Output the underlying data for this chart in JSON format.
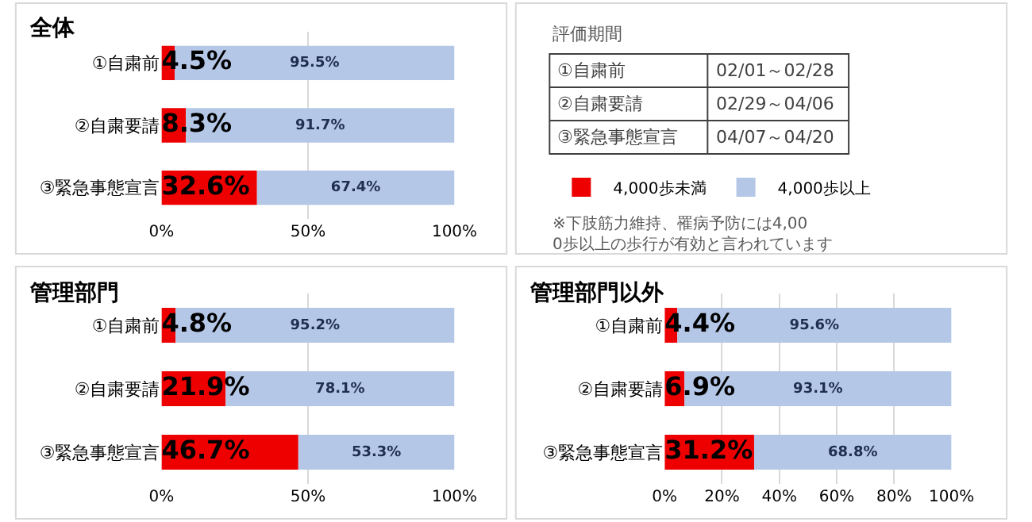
{
  "chart_data": [
    {
      "type": "bar",
      "title": "全体",
      "orientation": "horizontal",
      "stacked": true,
      "categories": [
        "①自粛前",
        "②自粛要請",
        "③緊急事態宣言"
      ],
      "series": [
        {
          "name": "4,000歩未満",
          "color": "#ee0000",
          "values": [
            4.5,
            8.3,
            32.6
          ],
          "value_labels": [
            "4.5%",
            "8.3%",
            "32.6%"
          ]
        },
        {
          "name": "4,000歩以上",
          "color": "#b4c7e7",
          "values": [
            95.5,
            91.7,
            67.4
          ],
          "value_labels": [
            "95.5%",
            "91.7%",
            "67.4%"
          ]
        }
      ],
      "xlim": [
        0,
        100
      ],
      "xticks": [
        {
          "value": 0,
          "label": "0%"
        },
        {
          "value": 50,
          "label": "50%"
        },
        {
          "value": 100,
          "label": "100%"
        }
      ],
      "grid": "x",
      "legend": "right"
    },
    {
      "type": "other",
      "title": "評価期間",
      "annotations": [
        "①自粛前",
        "02/01～02/28",
        "②自粛要請",
        "02/29～04/06",
        "③緊急事態宣言",
        "04/07～04/20",
        "※下肢筋力維持、罹病予防には4,000歩以上の歩行が有効と言われています"
      ]
    },
    {
      "type": "bar",
      "title": "管理部門",
      "orientation": "horizontal",
      "stacked": true,
      "categories": [
        "①自粛前",
        "②自粛要請",
        "③緊急事態宣言"
      ],
      "series": [
        {
          "color": "#ee0000",
          "values": [
            4.8,
            21.9,
            46.7
          ],
          "value_labels": [
            "4.8%",
            "21.9%",
            "46.7%"
          ]
        },
        {
          "color": "#b4c7e7",
          "values": [
            95.2,
            78.1,
            53.3
          ],
          "value_labels": [
            "95.2%",
            "78.1%",
            "53.3%"
          ]
        }
      ],
      "xlim": [
        0,
        100
      ],
      "xticks": [
        {
          "value": 0,
          "label": "0%"
        },
        {
          "value": 50,
          "label": "50%"
        },
        {
          "value": 100,
          "label": "100%"
        }
      ],
      "grid": "x"
    },
    {
      "type": "bar",
      "title": "管理部門以外",
      "orientation": "horizontal",
      "stacked": true,
      "categories": [
        "①自粛前",
        "②自粛要請",
        "③緊急事態宣言"
      ],
      "series": [
        {
          "color": "#ee0000",
          "values": [
            4.4,
            6.9,
            31.2
          ],
          "value_labels": [
            "4.4%",
            "6.9%",
            "31.2%"
          ]
        },
        {
          "color": "#b4c7e7",
          "values": [
            95.6,
            93.1,
            68.8
          ],
          "value_labels": [
            "95.6%",
            "93.1%",
            "68.8%"
          ]
        }
      ],
      "xlim": [
        0,
        100
      ],
      "xticks": [
        {
          "value": 0,
          "label": "0%"
        },
        {
          "value": 20,
          "label": "20%"
        },
        {
          "value": 40,
          "label": "40%"
        },
        {
          "value": 60,
          "label": "60%"
        },
        {
          "value": 80,
          "label": "80%"
        },
        {
          "value": 100,
          "label": "100%"
        }
      ],
      "grid": "x"
    }
  ]
}
